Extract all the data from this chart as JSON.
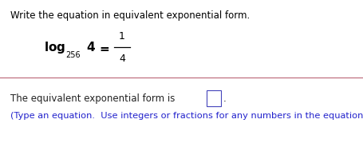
{
  "title_text": "Write the equation in equivalent exponential form.",
  "title_color": "#000000",
  "title_fontsize": 8.5,
  "answer_label": "The equivalent exponential form is ",
  "answer_label_color": "#222222",
  "answer_label_fontsize": 8.5,
  "hint_text": "(Type an equation.  Use integers or fractions for any numbers in the equation.)",
  "hint_color": "#2222cc",
  "hint_fontsize": 8.2,
  "divider_color": "#c07080",
  "bg_color": "#ffffff"
}
